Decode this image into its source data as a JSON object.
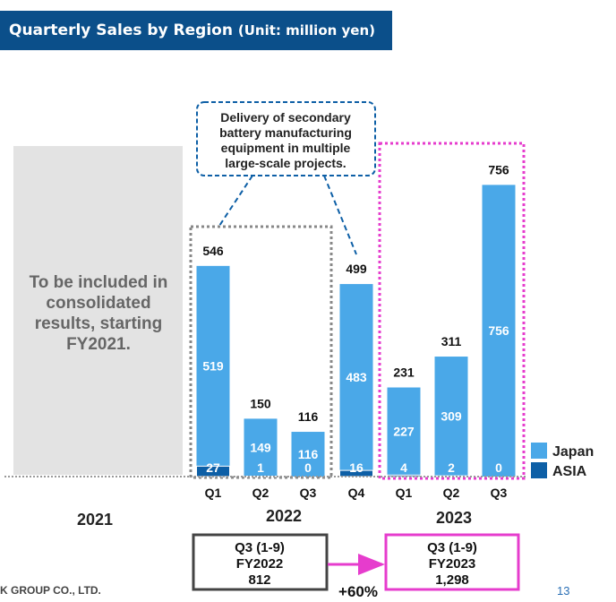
{
  "header": {
    "title": "Quarterly Sales by Region",
    "unit": "(Unit: million yen)"
  },
  "placeholder_text": [
    "To be included in",
    "consolidated",
    "results, starting",
    "FY2021."
  ],
  "callout_lines": [
    "Delivery of secondary",
    "battery manufacturing",
    "equipment in multiple",
    "large-scale projects."
  ],
  "year_labels": [
    "2021",
    "2022",
    "2023"
  ],
  "comparison": {
    "left": [
      "Q3 (1-9)",
      "FY2022",
      "812"
    ],
    "right": [
      "Q3 (1-9)",
      "FY2023",
      "1,298"
    ],
    "change": "+60%"
  },
  "footer": {
    "company": "K GROUP CO., LTD.",
    "page": "13"
  },
  "colors": {
    "title_bg": "#0b4f8a",
    "japan": "#4aa8e8",
    "asia": "#0d5fa6",
    "highlight": "#e63ccd",
    "placeholder_bg": "#e3e3e3"
  },
  "chart_data": {
    "type": "bar",
    "stacked": true,
    "categories": [
      "Q1",
      "Q2",
      "Q3",
      "Q4",
      "Q1",
      "Q2",
      "Q3"
    ],
    "groups": [
      "2022",
      "2022",
      "2022",
      "2022",
      "2023",
      "2023",
      "2023"
    ],
    "series": [
      {
        "name": "ASIA",
        "values": [
          27,
          1,
          0,
          16,
          4,
          2,
          0
        ]
      },
      {
        "name": "Japan",
        "values": [
          519,
          149,
          116,
          483,
          227,
          309,
          756
        ]
      }
    ],
    "totals": [
      546,
      150,
      116,
      499,
      231,
      311,
      756
    ],
    "legend": "right",
    "grid": false,
    "ylim": [
      0,
      850
    ]
  }
}
